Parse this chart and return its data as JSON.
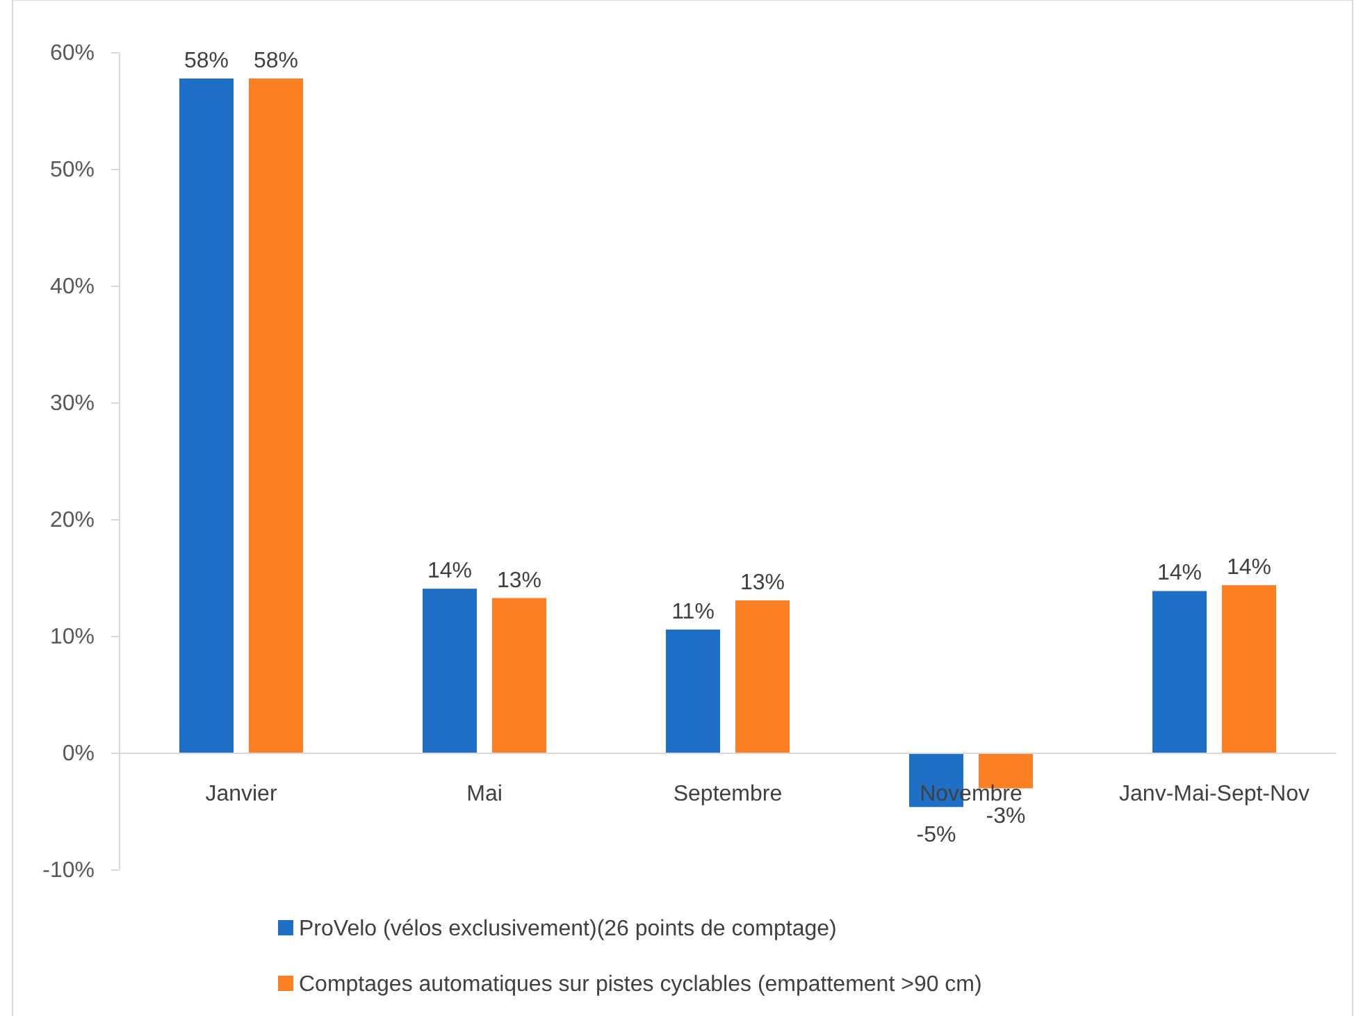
{
  "chart_data": {
    "type": "bar",
    "categories": [
      "Janvier",
      "Mai",
      "Septembre",
      "Novembre",
      "Janv-Mai-Sept-Nov"
    ],
    "series": [
      {
        "name": "ProVelo (vélos exclusivement)(26 points de comptage)",
        "color": "#1f6fc6",
        "values": [
          57.8,
          14.1,
          10.6,
          -4.6,
          13.9
        ],
        "value_labels": [
          "58%",
          "14%",
          "11%",
          "-5%",
          "14%"
        ]
      },
      {
        "name": "Comptages automatiques sur pistes cyclables (empattement >90 cm)",
        "color": "#fd7f23",
        "values": [
          57.8,
          13.3,
          13.1,
          -3.0,
          14.4
        ],
        "value_labels": [
          "58%",
          "13%",
          "13%",
          "-3%",
          "14%"
        ]
      }
    ],
    "ylim": [
      -10,
      60
    ],
    "yticks": [
      {
        "value": -10,
        "label": "-10%"
      },
      {
        "value": 0,
        "label": "0%"
      },
      {
        "value": 10,
        "label": "10%"
      },
      {
        "value": 20,
        "label": "20%"
      },
      {
        "value": 30,
        "label": "30%"
      },
      {
        "value": 40,
        "label": "40%"
      },
      {
        "value": 50,
        "label": "50%"
      },
      {
        "value": 60,
        "label": "60%"
      }
    ],
    "legend": "bottom"
  }
}
